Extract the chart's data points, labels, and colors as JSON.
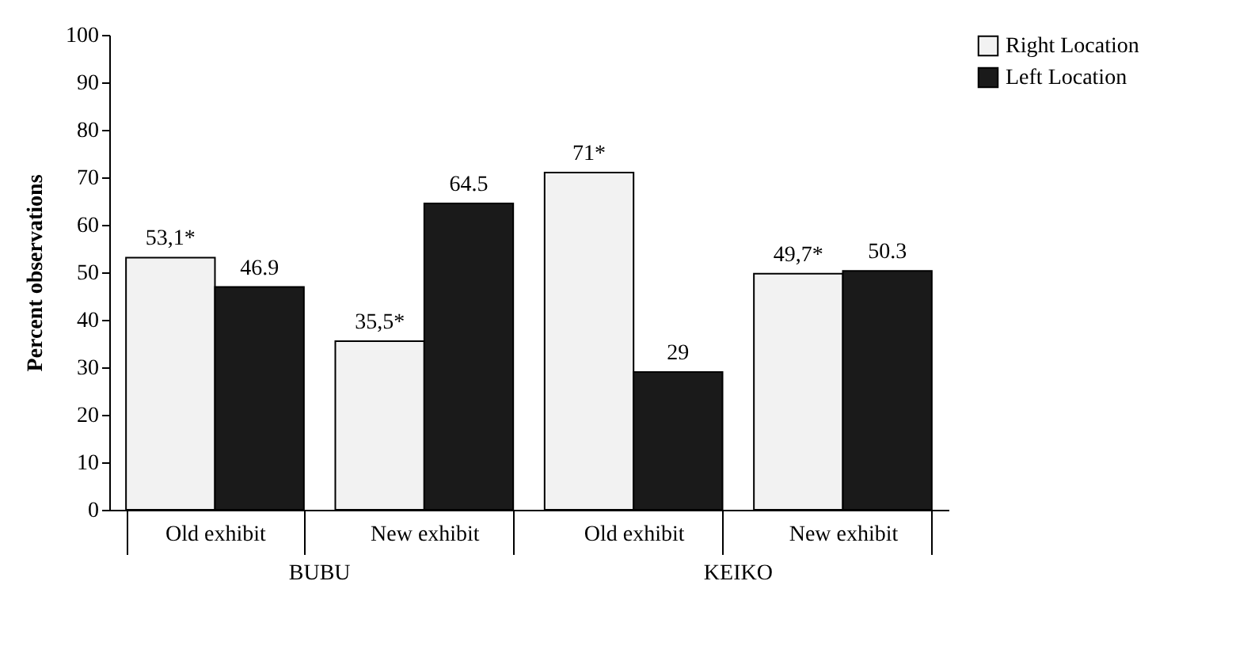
{
  "chart_data": {
    "type": "bar",
    "ylabel": "Percent observations",
    "categories": [
      "Old exhibit",
      "New exhibit",
      "Old exhibit",
      "New exhibit"
    ],
    "series": [
      {
        "name": "Right Location",
        "color": "#f2f2f2",
        "values": [
          53.1,
          35.5,
          71,
          49.7
        ],
        "value_labels": [
          "53,1*",
          "35,5*",
          "71*",
          "49,7*"
        ]
      },
      {
        "name": "Left Location",
        "color": "#1a1a1a",
        "values": [
          46.9,
          64.5,
          29,
          50.3
        ],
        "value_labels": [
          "46.9",
          "64.5",
          "29",
          "50.3"
        ]
      }
    ],
    "annotations": [
      "BUBU",
      "KEIKO"
    ],
    "ylim": [
      0,
      100
    ],
    "yticks": [
      0,
      10,
      20,
      30,
      40,
      50,
      60,
      70,
      80,
      90,
      100
    ],
    "grid": false,
    "legend": "right"
  }
}
